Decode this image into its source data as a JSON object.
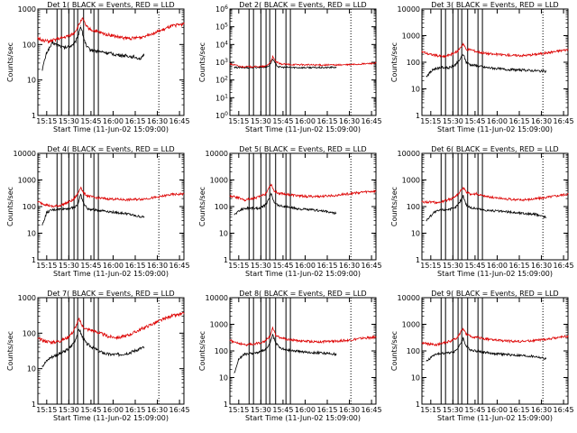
{
  "figure": {
    "xlabel": "Start Time (11-Jun-02 15:09:00)",
    "ylabel": "Counts/sec",
    "x_ticks": [
      "15:15",
      "15:30",
      "15:45",
      "16:00",
      "16:15",
      "16:30",
      "16:45"
    ],
    "colors": {
      "events": "#000000",
      "lld": "#dd0000",
      "axes": "#000000"
    }
  },
  "chart_data": [
    {
      "type": "line",
      "title": "Det 1( BLACK = Events, RED = LLD",
      "yscale": "log",
      "ylim": [
        1,
        1000
      ],
      "y_ticks": [
        "1",
        "10",
        "100",
        "1000"
      ],
      "x_range_minutes": [
        0,
        99
      ],
      "marker_lines_min": [
        13,
        16,
        21,
        24.5,
        27,
        31,
        38,
        41
      ],
      "dotted_line_min": 82,
      "events_start": 3,
      "events_end": 72,
      "series": [
        {
          "name": "Events",
          "color": "#000000",
          "x": [
            3,
            6,
            10,
            14,
            18,
            22,
            25,
            27,
            29,
            31,
            33,
            36,
            40,
            45,
            50,
            55,
            60,
            65,
            70,
            72
          ],
          "values": [
            20,
            60,
            110,
            95,
            80,
            90,
            110,
            160,
            330,
            160,
            85,
            70,
            65,
            60,
            55,
            50,
            48,
            45,
            40,
            50
          ]
        },
        {
          "name": "LLD",
          "color": "#dd0000",
          "x": [
            0,
            4,
            8,
            12,
            16,
            20,
            24,
            27,
            30,
            33,
            36,
            40,
            45,
            50,
            55,
            60,
            65,
            70,
            75,
            80,
            85,
            90,
            95,
            99
          ],
          "values": [
            150,
            130,
            120,
            140,
            150,
            170,
            200,
            300,
            550,
            320,
            260,
            230,
            200,
            180,
            160,
            150,
            150,
            160,
            190,
            220,
            260,
            320,
            360,
            380
          ]
        }
      ]
    },
    {
      "type": "line",
      "title": "Det 2( BLACK = Events, RED = LLD",
      "yscale": "log",
      "ylim": [
        1,
        1000000
      ],
      "y_ticks": [
        "10^0",
        "10^1",
        "10^2",
        "10^3",
        "10^4",
        "10^5",
        "10^6"
      ],
      "x_range_minutes": [
        0,
        99
      ],
      "marker_lines_min": [
        13,
        16,
        21,
        24.5,
        27,
        31,
        38,
        41
      ],
      "dotted_line_min": 82,
      "events_start": 3,
      "events_end": 72,
      "series": [
        {
          "name": "Events",
          "color": "#000000",
          "x": [
            3,
            10,
            20,
            25,
            27,
            29,
            31,
            33,
            36,
            45,
            55,
            65,
            72
          ],
          "values": [
            500,
            500,
            520,
            550,
            700,
            1500,
            800,
            550,
            520,
            500,
            500,
            500,
            520
          ]
        },
        {
          "name": "LLD",
          "color": "#dd0000",
          "x": [
            0,
            8,
            16,
            24,
            27,
            29,
            31,
            34,
            40,
            50,
            60,
            70,
            80,
            90,
            99
          ],
          "values": [
            800,
            560,
            560,
            580,
            900,
            2000,
            1100,
            800,
            750,
            720,
            700,
            700,
            720,
            800,
            900
          ]
        }
      ]
    },
    {
      "type": "line",
      "title": "Det 3( BLACK = Events, RED = LLD",
      "yscale": "log",
      "ylim": [
        1,
        10000
      ],
      "y_ticks": [
        "1",
        "10",
        "100",
        "1000",
        "10000"
      ],
      "x_range_minutes": [
        0,
        99
      ],
      "marker_lines_min": [
        13,
        16,
        21,
        24.5,
        27,
        31,
        38,
        41
      ],
      "dotted_line_min": 82,
      "events_start": 3,
      "events_end": 84,
      "series": [
        {
          "name": "Events",
          "color": "#000000",
          "x": [
            3,
            8,
            13,
            18,
            22,
            25,
            28,
            30,
            33,
            37,
            42,
            48,
            55,
            62,
            70,
            78,
            84
          ],
          "values": [
            30,
            55,
            65,
            60,
            75,
            110,
            200,
            100,
            80,
            75,
            65,
            60,
            55,
            52,
            50,
            48,
            45
          ]
        },
        {
          "name": "LLD",
          "color": "#dd0000",
          "x": [
            0,
            5,
            10,
            15,
            20,
            24,
            28,
            30,
            33,
            37,
            42,
            48,
            55,
            62,
            70,
            78,
            86,
            92,
            99
          ],
          "values": [
            250,
            200,
            180,
            160,
            200,
            250,
            500,
            300,
            300,
            250,
            220,
            200,
            190,
            180,
            180,
            200,
            230,
            260,
            300
          ]
        }
      ]
    },
    {
      "type": "line",
      "title": "Det 4( BLACK = Events, RED = LLD",
      "yscale": "log",
      "ylim": [
        1,
        10000
      ],
      "y_ticks": [
        "1",
        "10",
        "100",
        "1000",
        "10000"
      ],
      "x_range_minutes": [
        0,
        99
      ],
      "marker_lines_min": [
        13,
        16,
        21,
        24.5,
        27,
        31,
        38,
        41
      ],
      "dotted_line_min": 82,
      "events_start": 3,
      "events_end": 72,
      "series": [
        {
          "name": "Events",
          "color": "#000000",
          "x": [
            3,
            6,
            10,
            15,
            20,
            24,
            27,
            29,
            31,
            34,
            38,
            45,
            52,
            60,
            66,
            72
          ],
          "values": [
            20,
            60,
            75,
            80,
            85,
            90,
            120,
            280,
            130,
            80,
            75,
            70,
            60,
            55,
            45,
            40
          ]
        },
        {
          "name": "LLD",
          "color": "#dd0000",
          "x": [
            0,
            5,
            10,
            15,
            20,
            24,
            27,
            29,
            31,
            34,
            38,
            45,
            52,
            60,
            70,
            80,
            90,
            99
          ],
          "values": [
            150,
            120,
            100,
            110,
            140,
            180,
            300,
            550,
            320,
            250,
            220,
            200,
            190,
            180,
            190,
            220,
            280,
            300
          ]
        }
      ]
    },
    {
      "type": "line",
      "title": "Det 5( BLACK = Events, RED = LLD",
      "yscale": "log",
      "ylim": [
        1,
        10000
      ],
      "y_ticks": [
        "1",
        "10",
        "100",
        "1000",
        "10000"
      ],
      "x_range_minutes": [
        0,
        99
      ],
      "marker_lines_min": [
        13,
        16,
        21,
        24.5,
        27,
        31,
        38,
        41
      ],
      "dotted_line_min": 82,
      "events_start": 3,
      "events_end": 72,
      "series": [
        {
          "name": "Events",
          "color": "#000000",
          "x": [
            3,
            8,
            13,
            18,
            22,
            25,
            28,
            30,
            33,
            37,
            42,
            48,
            55,
            62,
            68,
            72
          ],
          "values": [
            50,
            80,
            90,
            85,
            95,
            130,
            300,
            150,
            110,
            100,
            90,
            80,
            75,
            70,
            60,
            55
          ]
        },
        {
          "name": "LLD",
          "color": "#dd0000",
          "x": [
            0,
            5,
            10,
            15,
            20,
            24,
            28,
            30,
            33,
            37,
            42,
            48,
            55,
            62,
            70,
            80,
            90,
            99
          ],
          "values": [
            250,
            220,
            180,
            200,
            230,
            300,
            700,
            380,
            320,
            300,
            270,
            250,
            240,
            240,
            260,
            300,
            350,
            380
          ]
        }
      ]
    },
    {
      "type": "line",
      "title": "Det 6( BLACK = Events, RED = LLD",
      "yscale": "log",
      "ylim": [
        1,
        10000
      ],
      "y_ticks": [
        "1",
        "10",
        "100",
        "1000",
        "10000"
      ],
      "x_range_minutes": [
        0,
        99
      ],
      "marker_lines_min": [
        13,
        16,
        21,
        24.5,
        27,
        31,
        38,
        41
      ],
      "dotted_line_min": 82,
      "events_start": 3,
      "events_end": 84,
      "series": [
        {
          "name": "Events",
          "color": "#000000",
          "x": [
            3,
            8,
            13,
            18,
            22,
            25,
            28,
            30,
            33,
            37,
            42,
            48,
            55,
            62,
            70,
            78,
            84
          ],
          "values": [
            30,
            60,
            75,
            80,
            85,
            130,
            250,
            120,
            90,
            85,
            75,
            70,
            65,
            60,
            55,
            50,
            40
          ]
        },
        {
          "name": "LLD",
          "color": "#dd0000",
          "x": [
            0,
            5,
            10,
            15,
            20,
            24,
            28,
            30,
            33,
            37,
            42,
            48,
            55,
            62,
            70,
            78,
            86,
            92,
            99
          ],
          "values": [
            150,
            150,
            140,
            160,
            200,
            280,
            500,
            350,
            300,
            300,
            250,
            220,
            200,
            180,
            180,
            200,
            230,
            260,
            300
          ]
        }
      ]
    },
    {
      "type": "line",
      "title": "Det 7( BLACK = Events, RED = LLD",
      "yscale": "log",
      "ylim": [
        1,
        1000
      ],
      "y_ticks": [
        "1",
        "10",
        "100",
        "1000"
      ],
      "x_range_minutes": [
        0,
        99
      ],
      "marker_lines_min": [
        13,
        16,
        21,
        24.5,
        27,
        31,
        38,
        41
      ],
      "dotted_line_min": 82,
      "events_start": 3,
      "events_end": 72,
      "series": [
        {
          "name": "Events",
          "color": "#000000",
          "x": [
            3,
            8,
            13,
            18,
            22,
            25,
            28,
            30,
            33,
            37,
            42,
            48,
            55,
            62,
            68,
            72
          ],
          "values": [
            12,
            20,
            25,
            30,
            40,
            60,
            130,
            80,
            50,
            40,
            30,
            25,
            25,
            28,
            35,
            40
          ]
        },
        {
          "name": "LLD",
          "color": "#dd0000",
          "x": [
            0,
            5,
            10,
            15,
            20,
            24,
            28,
            30,
            33,
            37,
            42,
            48,
            55,
            62,
            70,
            80,
            90,
            99
          ],
          "values": [
            70,
            60,
            55,
            60,
            75,
            110,
            250,
            160,
            130,
            120,
            100,
            80,
            75,
            90,
            130,
            200,
            300,
            350
          ]
        }
      ]
    },
    {
      "type": "line",
      "title": "Det 8( BLACK = Events, RED = LLD",
      "yscale": "log",
      "ylim": [
        1,
        10000
      ],
      "y_ticks": [
        "1",
        "10",
        "100",
        "1000",
        "10000"
      ],
      "x_range_minutes": [
        0,
        99
      ],
      "marker_lines_min": [
        13,
        16,
        21,
        24.5,
        27,
        31,
        38,
        41
      ],
      "dotted_line_min": 82,
      "events_start": 3,
      "events_end": 72,
      "series": [
        {
          "name": "Events",
          "color": "#000000",
          "x": [
            3,
            6,
            10,
            15,
            20,
            24,
            27,
            29,
            31,
            34,
            38,
            45,
            52,
            60,
            66,
            72
          ],
          "values": [
            15,
            50,
            75,
            80,
            90,
            110,
            180,
            400,
            200,
            130,
            110,
            100,
            90,
            85,
            80,
            75
          ]
        },
        {
          "name": "LLD",
          "color": "#dd0000",
          "x": [
            0,
            5,
            10,
            15,
            20,
            24,
            27,
            29,
            31,
            34,
            38,
            45,
            52,
            60,
            70,
            80,
            90,
            99
          ],
          "values": [
            250,
            200,
            170,
            180,
            200,
            240,
            350,
            700,
            400,
            320,
            270,
            250,
            230,
            220,
            230,
            250,
            300,
            330
          ]
        }
      ]
    },
    {
      "type": "line",
      "title": "Det 9( BLACK = Events, RED = LLD",
      "yscale": "log",
      "ylim": [
        1,
        10000
      ],
      "y_ticks": [
        "1",
        "10",
        "100",
        "1000",
        "10000"
      ],
      "x_range_minutes": [
        0,
        99
      ],
      "marker_lines_min": [
        13,
        16,
        21,
        24.5,
        27,
        31,
        38,
        41
      ],
      "dotted_line_min": 82,
      "events_start": 3,
      "events_end": 84,
      "series": [
        {
          "name": "Events",
          "color": "#000000",
          "x": [
            3,
            8,
            13,
            18,
            22,
            25,
            28,
            30,
            33,
            37,
            42,
            48,
            55,
            62,
            70,
            78,
            84
          ],
          "values": [
            40,
            70,
            80,
            85,
            95,
            140,
            300,
            150,
            110,
            100,
            90,
            80,
            75,
            70,
            65,
            60,
            50
          ]
        },
        {
          "name": "LLD",
          "color": "#dd0000",
          "x": [
            0,
            5,
            10,
            15,
            20,
            24,
            28,
            30,
            33,
            37,
            42,
            48,
            55,
            62,
            70,
            78,
            86,
            92,
            99
          ],
          "values": [
            200,
            180,
            170,
            200,
            240,
            320,
            700,
            420,
            350,
            320,
            290,
            260,
            240,
            230,
            230,
            250,
            280,
            320,
            360
          ]
        }
      ]
    }
  ]
}
